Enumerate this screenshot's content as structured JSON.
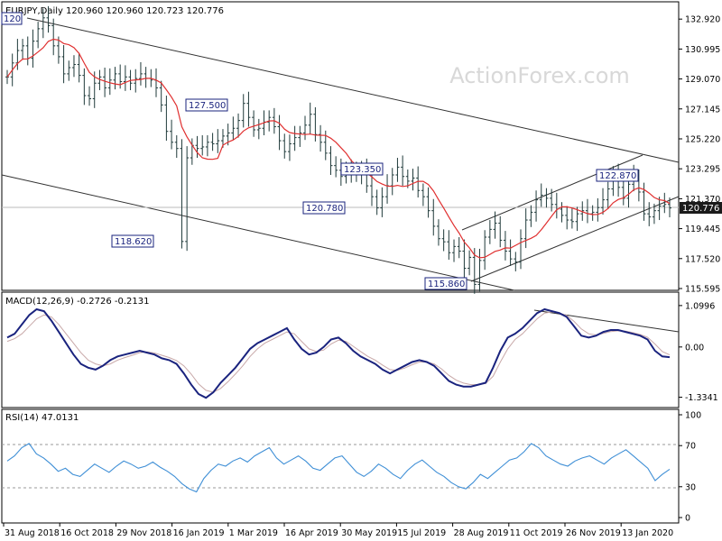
{
  "header": {
    "symbol": "EURJPY,Daily",
    "ohlc": "120.960 120.960 120.723 120.776"
  },
  "watermark": "ActionForex.com",
  "colors": {
    "bar": "#1f3a3a",
    "ma": "#e03030",
    "macd": "#1a237e",
    "signal": "#c8a8a8",
    "rsi": "#3f8fd6",
    "trend": "#333333",
    "last_price_bg": "#1a1a1a"
  },
  "chart_data": [
    {
      "type": "ohlc",
      "pane": "price",
      "ylim": [
        115.595,
        133.8
      ],
      "y_ticks": [
        "132.920",
        "130.995",
        "129.070",
        "127.145",
        "125.220",
        "123.295",
        "121.370",
        "119.445",
        "117.520",
        "115.595"
      ],
      "x_ticks": [
        "31 Aug 2018",
        "16 Oct 2018",
        "29 Nov 2018",
        "16 Jan 2019",
        "1 Mar 2019",
        "16 Apr 2019",
        "30 May 2019",
        "15 Jul 2019",
        "28 Aug 2019",
        "11 Oct 2019",
        "26 Nov 2019",
        "13 Jan 2020"
      ],
      "last_price": "120.776",
      "series": [
        {
          "name": "EURJPY",
          "type": "ohlc",
          "close": [
            129.2,
            130.1,
            130.9,
            131.2,
            130.4,
            131.5,
            132.3,
            133.0,
            132.5,
            131.2,
            130.5,
            129.4,
            129.8,
            130.0,
            129.3,
            128.0,
            127.8,
            128.8,
            129.2,
            128.5,
            129.0,
            129.4,
            128.9,
            129.2,
            128.8,
            129.1,
            129.4,
            129.1,
            129.0,
            128.5,
            127.4,
            125.7,
            125.0,
            124.6,
            118.62,
            124.0,
            124.8,
            124.6,
            124.7,
            125.0,
            124.9,
            125.1,
            125.4,
            125.6,
            125.9,
            126.4,
            127.5,
            126.6,
            125.8,
            125.9,
            126.3,
            126.6,
            126.0,
            125.1,
            124.4,
            124.9,
            125.3,
            125.6,
            126.1,
            126.8,
            125.5,
            125.0,
            124.3,
            123.5,
            123.2,
            122.8,
            123.3,
            123.0,
            122.9,
            123.35,
            122.2,
            121.5,
            120.78,
            121.5,
            122.2,
            122.9,
            123.4,
            122.8,
            122.5,
            122.7,
            121.9,
            121.5,
            120.6,
            119.6,
            118.8,
            118.6,
            117.9,
            118.3,
            118.0,
            116.9,
            117.6,
            115.86,
            117.4,
            118.9,
            119.4,
            119.8,
            118.7,
            118.0,
            117.5,
            117.3,
            118.8,
            120.0,
            120.5,
            121.3,
            121.6,
            121.4,
            121.0,
            120.7,
            120.3,
            120.0,
            119.9,
            120.4,
            120.6,
            120.4,
            120.5,
            120.8,
            121.3,
            122.0,
            122.87,
            122.1,
            121.4,
            122.3,
            122.8,
            121.8,
            120.4,
            120.2,
            120.6,
            120.9,
            121.0,
            120.776
          ]
        }
      ]
    },
    {
      "type": "line",
      "pane": "macd",
      "label": "MACD(12,26,9) -0.2726 -0.2131",
      "ylim": [
        -1.56,
        1.36
      ],
      "y_ticks": [
        "1.0996",
        "0.00",
        "-1.3341"
      ],
      "series": [
        {
          "values": [
            0.25,
            0.35,
            0.6,
            0.85,
            1.0,
            0.95,
            0.7,
            0.4,
            0.1,
            -0.2,
            -0.45,
            -0.55,
            -0.6,
            -0.5,
            -0.35,
            -0.25,
            -0.2,
            -0.15,
            -0.1,
            -0.15,
            -0.2,
            -0.3,
            -0.35,
            -0.45,
            -0.7,
            -1.0,
            -1.25,
            -1.35,
            -1.2,
            -0.95,
            -0.75,
            -0.55,
            -0.3,
            -0.05,
            0.1,
            0.2,
            0.3,
            0.4,
            0.5,
            0.2,
            -0.05,
            -0.2,
            -0.15,
            0.0,
            0.2,
            0.25,
            0.1,
            -0.1,
            -0.25,
            -0.35,
            -0.45,
            -0.6,
            -0.7,
            -0.6,
            -0.5,
            -0.4,
            -0.35,
            -0.4,
            -0.5,
            -0.7,
            -0.9,
            -1.0,
            -1.05,
            -1.05,
            -1.0,
            -0.95,
            -0.55,
            -0.1,
            0.25,
            0.35,
            0.5,
            0.7,
            0.9,
            1.0,
            0.95,
            0.9,
            0.8,
            0.55,
            0.3,
            0.25,
            0.3,
            0.4,
            0.45,
            0.45,
            0.4,
            0.35,
            0.3,
            0.2,
            -0.1,
            -0.25,
            -0.27
          ]
        },
        {
          "values": [
            0.15,
            0.22,
            0.35,
            0.55,
            0.75,
            0.85,
            0.8,
            0.6,
            0.35,
            0.1,
            -0.15,
            -0.35,
            -0.45,
            -0.5,
            -0.45,
            -0.35,
            -0.28,
            -0.22,
            -0.15,
            -0.13,
            -0.16,
            -0.22,
            -0.28,
            -0.36,
            -0.5,
            -0.72,
            -0.98,
            -1.15,
            -1.2,
            -1.1,
            -0.92,
            -0.72,
            -0.5,
            -0.25,
            -0.05,
            0.1,
            0.2,
            0.3,
            0.4,
            0.35,
            0.15,
            -0.05,
            -0.12,
            -0.08,
            0.08,
            0.18,
            0.15,
            0.02,
            -0.12,
            -0.25,
            -0.35,
            -0.48,
            -0.6,
            -0.62,
            -0.56,
            -0.47,
            -0.4,
            -0.4,
            -0.45,
            -0.58,
            -0.75,
            -0.88,
            -0.96,
            -1.0,
            -1.0,
            -0.97,
            -0.78,
            -0.4,
            -0.05,
            0.2,
            0.35,
            0.55,
            0.75,
            0.9,
            0.93,
            0.9,
            0.84,
            0.68,
            0.48,
            0.35,
            0.32,
            0.36,
            0.41,
            0.43,
            0.42,
            0.38,
            0.33,
            0.26,
            0.08,
            -0.12,
            -0.21
          ]
        }
      ]
    },
    {
      "type": "line",
      "pane": "rsi",
      "label": "RSI(14) 47.0131",
      "ylim": [
        0,
        100
      ],
      "y_ticks": [
        "100",
        "70",
        "30",
        "0"
      ],
      "series": [
        {
          "values": [
            55,
            60,
            68,
            72,
            62,
            58,
            52,
            45,
            48,
            42,
            40,
            46,
            52,
            48,
            44,
            50,
            55,
            52,
            48,
            50,
            54,
            49,
            45,
            40,
            33,
            28,
            25,
            38,
            46,
            52,
            50,
            55,
            58,
            54,
            60,
            64,
            68,
            58,
            52,
            56,
            60,
            55,
            48,
            46,
            52,
            58,
            60,
            52,
            44,
            40,
            45,
            52,
            48,
            42,
            38,
            46,
            52,
            56,
            50,
            44,
            40,
            34,
            30,
            28,
            34,
            42,
            38,
            44,
            50,
            56,
            58,
            64,
            72,
            68,
            60,
            56,
            52,
            50,
            55,
            58,
            60,
            56,
            52,
            58,
            62,
            66,
            60,
            54,
            48,
            36,
            42,
            47
          ]
        }
      ]
    }
  ]
}
